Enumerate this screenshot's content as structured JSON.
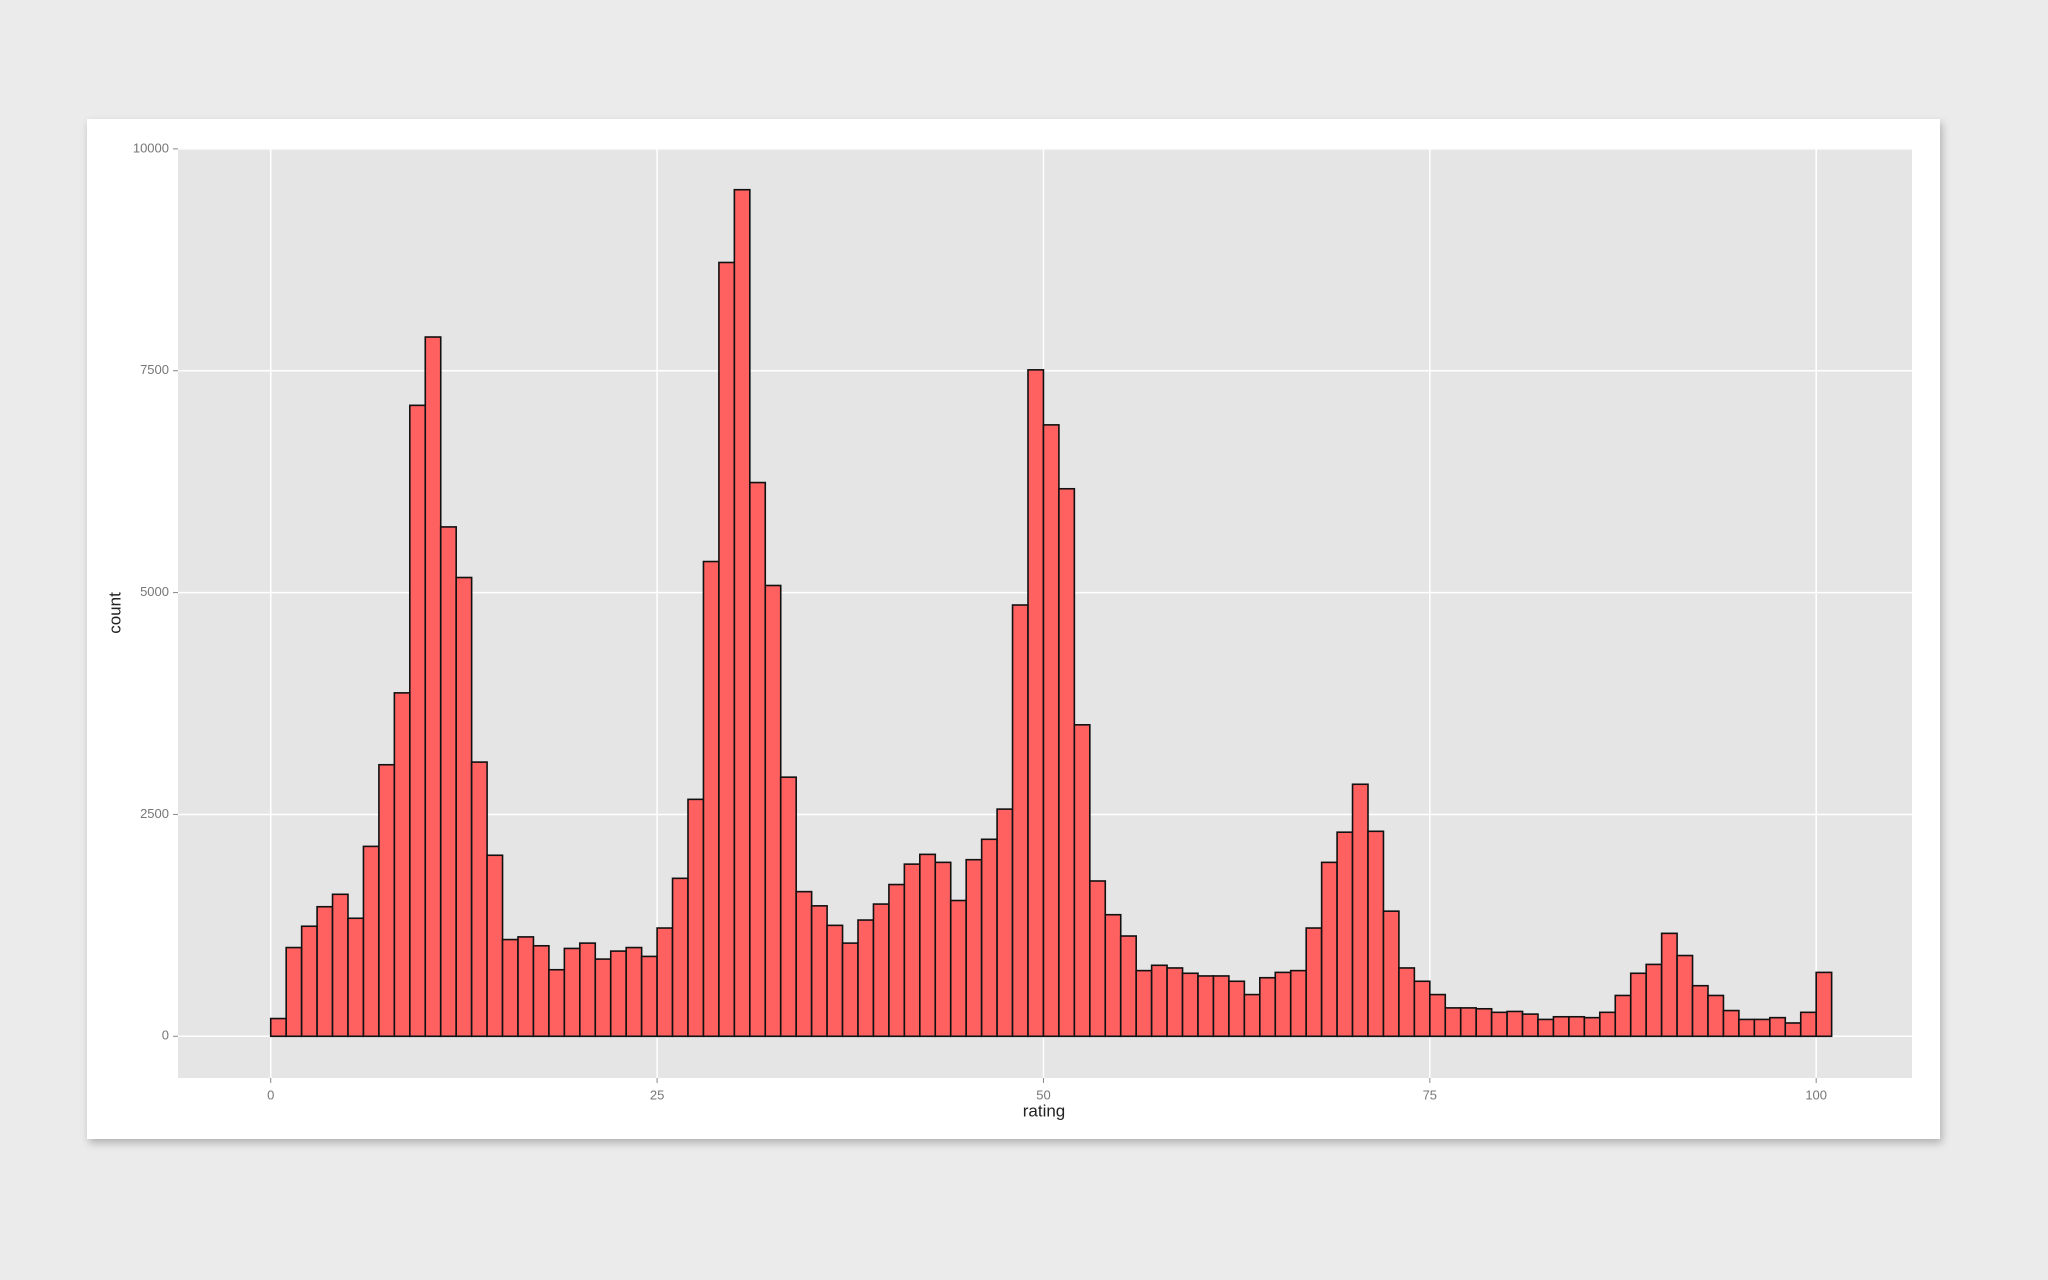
{
  "chart_data": {
    "type": "histogram",
    "x_label": "rating",
    "y_label": "count",
    "bins": [
      -1,
      0,
      1,
      2,
      3,
      4,
      5,
      6,
      7,
      8,
      9,
      10,
      11,
      12,
      13,
      14,
      15,
      16,
      17,
      18,
      19,
      20,
      21,
      22,
      23,
      24,
      25,
      26,
      27,
      28,
      29,
      30,
      31,
      32,
      33,
      34,
      35,
      36,
      37,
      38,
      39,
      40,
      41,
      42,
      43,
      44,
      45,
      46,
      47,
      48,
      49,
      50,
      51,
      52,
      53,
      54,
      55,
      56,
      57,
      58,
      59,
      60,
      61,
      62,
      63,
      64,
      65,
      66,
      67,
      68,
      69,
      70,
      71,
      72,
      73,
      74,
      75,
      76,
      77,
      78,
      79,
      80,
      81,
      82,
      83,
      84,
      85,
      86,
      87,
      88,
      89,
      90,
      91,
      92,
      93,
      94,
      95,
      96,
      97,
      98,
      99,
      100,
      101
    ],
    "counts": [
      0,
      200,
      1000,
      1240,
      1460,
      1600,
      1330,
      2140,
      3060,
      3870,
      7110,
      7880,
      5740,
      5170,
      3090,
      2040,
      1090,
      1120,
      1020,
      750,
      990,
      1050,
      870,
      960,
      1000,
      900,
      1220,
      1780,
      2670,
      5350,
      8720,
      9540,
      6240,
      5080,
      2920,
      1630,
      1470,
      1250,
      1050,
      1310,
      1490,
      1710,
      1940,
      2050,
      1960,
      1530,
      1990,
      2220,
      2560,
      4860,
      7510,
      6890,
      6170,
      3510,
      1750,
      1370,
      1130,
      740,
      800,
      770,
      710,
      680,
      680,
      620,
      470,
      660,
      720,
      740,
      1220,
      1960,
      2300,
      2840,
      2310,
      1410,
      770,
      620,
      470,
      320,
      320,
      310,
      270,
      280,
      250,
      190,
      220,
      220,
      210,
      270,
      460,
      710,
      810,
      1160,
      910,
      570,
      460,
      290,
      190,
      190,
      210,
      150,
      270,
      720
    ],
    "color": "#ff6161",
    "xlim": [
      -6,
      106.2
    ],
    "ylim": [
      -470,
      10010
    ],
    "xticks": [
      0,
      25,
      50,
      75,
      100
    ],
    "yticks": [
      0,
      2500,
      5000,
      7500,
      10000
    ],
    "grid": true
  }
}
